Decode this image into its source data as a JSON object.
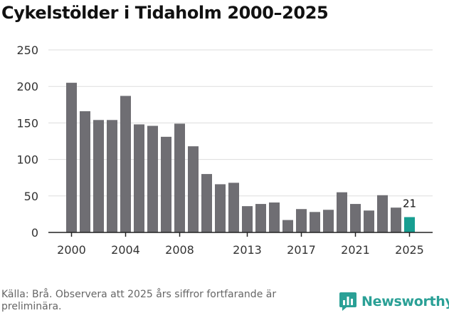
{
  "title": "Cykelstölder i Tidaholm 2000–2025",
  "source": "Källa: Brå. Observera att 2025 års siffror fortfarande är preliminära.",
  "brand": {
    "name": "Newsworthy",
    "icon": "newsworthy-logo-icon"
  },
  "colors": {
    "bar": "#6f6e73",
    "highlight": "#179e91",
    "grid": "#dddddd",
    "axis": "#222222"
  },
  "chart_data": {
    "type": "bar",
    "title": "Cykelstölder i Tidaholm 2000–2025",
    "xlabel": "",
    "ylabel": "",
    "ylim": [
      0,
      250
    ],
    "yticks": [
      0,
      50,
      100,
      150,
      200,
      250
    ],
    "categories": [
      "2000",
      "2001",
      "2002",
      "2003",
      "2004",
      "2005",
      "2006",
      "2007",
      "2008",
      "2009",
      "2010",
      "2011",
      "2012",
      "2013",
      "2014",
      "2015",
      "2016",
      "2017",
      "2018",
      "2019",
      "2020",
      "2021",
      "2022",
      "2023",
      "2024",
      "2025"
    ],
    "values": [
      205,
      166,
      154,
      154,
      187,
      148,
      146,
      131,
      149,
      118,
      80,
      66,
      68,
      36,
      39,
      41,
      17,
      32,
      28,
      31,
      55,
      39,
      30,
      51,
      34,
      21
    ],
    "xtick_labels": [
      "2000",
      "2004",
      "2008",
      "2013",
      "2017",
      "2021",
      "2025"
    ],
    "highlight_category": "2025",
    "data_labels": [
      {
        "category": "2025",
        "text": "21"
      }
    ]
  }
}
